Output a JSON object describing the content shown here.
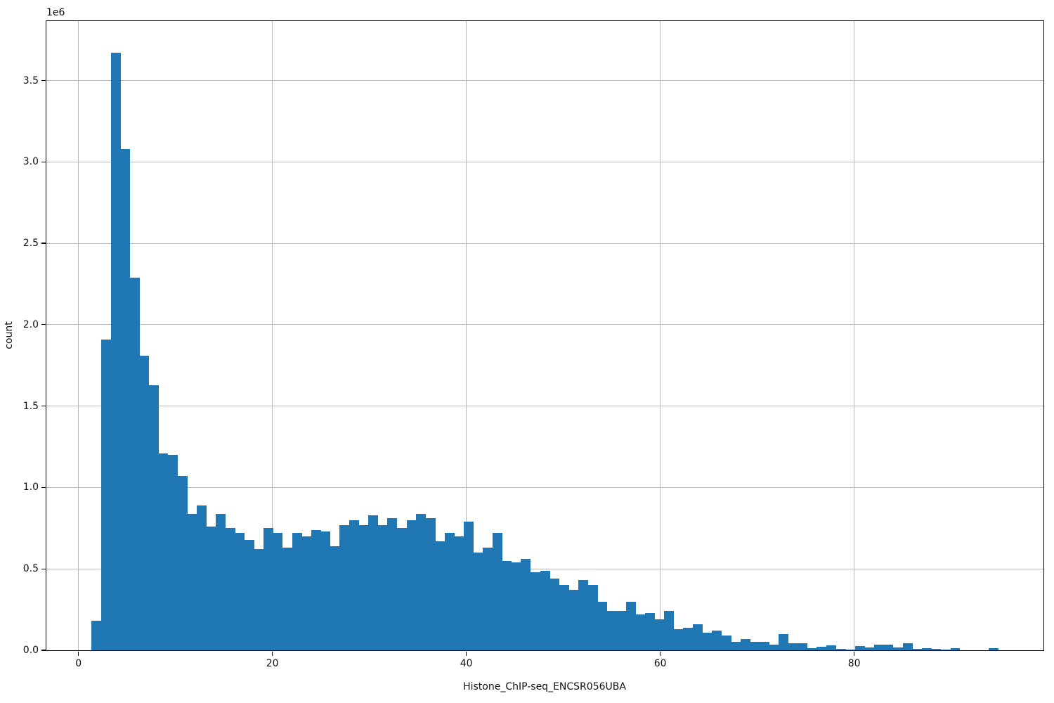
{
  "chart_data": {
    "type": "histogram",
    "title": "",
    "xlabel": "Histone_ChIP-seq_ENCSR056UBA",
    "ylabel": "count",
    "offset_label": "1e6",
    "legend": null,
    "grid": true,
    "bar_color": "#1f77b4",
    "grid_color": "#b8b8b8",
    "spine_color": "#000000",
    "text_color": "#101010",
    "xlim": [
      -3.31,
      99.52
    ],
    "ylim": [
      0,
      3865000
    ],
    "xticks": [
      {
        "value": 0,
        "label": "0"
      },
      {
        "value": 20,
        "label": "20"
      },
      {
        "value": 40,
        "label": "40"
      },
      {
        "value": 60,
        "label": "60"
      },
      {
        "value": 80,
        "label": "80"
      }
    ],
    "yticks": [
      {
        "value": 0,
        "label": "0.0"
      },
      {
        "value": 500000,
        "label": "0.5"
      },
      {
        "value": 1000000,
        "label": "1.0"
      },
      {
        "value": 1500000,
        "label": "1.5"
      },
      {
        "value": 2000000,
        "label": "2.0"
      },
      {
        "value": 2500000,
        "label": "2.5"
      },
      {
        "value": 3000000,
        "label": "3.0"
      },
      {
        "value": 3500000,
        "label": "3.5"
      }
    ],
    "bins": {
      "start": 1.36,
      "width": 0.984,
      "count": 95
    },
    "counts": [
      180000,
      1910000,
      3670000,
      3080000,
      2290000,
      1810000,
      1630000,
      1210000,
      1200000,
      1070000,
      840000,
      890000,
      760000,
      840000,
      750000,
      720000,
      680000,
      620000,
      750000,
      720000,
      630000,
      720000,
      700000,
      740000,
      730000,
      640000,
      770000,
      800000,
      770000,
      830000,
      770000,
      810000,
      750000,
      800000,
      840000,
      810000,
      670000,
      720000,
      700000,
      790000,
      600000,
      630000,
      720000,
      550000,
      540000,
      560000,
      480000,
      490000,
      440000,
      400000,
      370000,
      430000,
      400000,
      300000,
      240000,
      240000,
      300000,
      220000,
      230000,
      190000,
      240000,
      130000,
      140000,
      160000,
      110000,
      120000,
      90000,
      50000,
      70000,
      50000,
      50000,
      35000,
      100000,
      42000,
      42000,
      13000,
      20000,
      30000,
      10000,
      6000,
      27000,
      17000,
      33000,
      33000,
      17000,
      42000,
      10000,
      13000,
      7000,
      3000,
      13000,
      2000,
      2000,
      2000,
      12000
    ]
  }
}
